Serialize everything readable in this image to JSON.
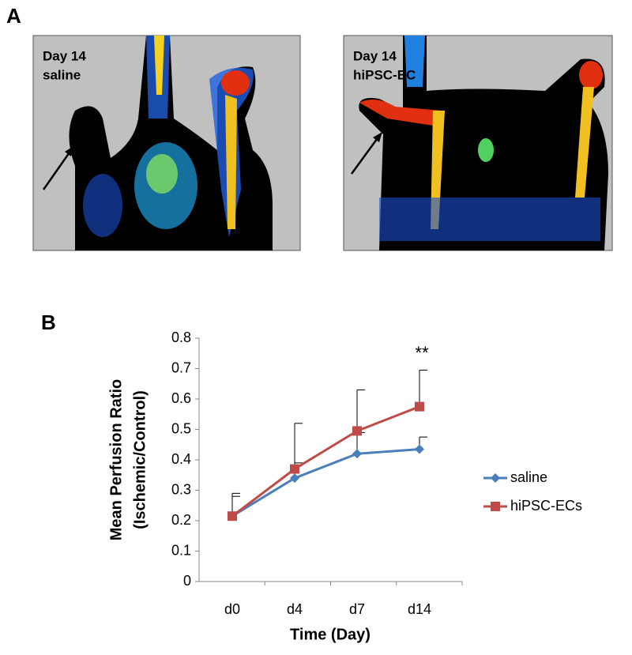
{
  "panel_a": {
    "label": "A",
    "images": [
      {
        "caption": [
          "Day 14",
          "saline"
        ]
      },
      {
        "caption": [
          "Day 14",
          "hiPSC-EC"
        ]
      }
    ]
  },
  "panel_b": {
    "label": "B"
  },
  "chart_data": {
    "type": "line",
    "xlabel": "Time (Day)",
    "ylabel": [
      "Mean Perfusion Ratio",
      "(Ischemic/Control)"
    ],
    "categories": [
      "d0",
      "d4",
      "d7",
      "d14"
    ],
    "series": [
      {
        "name": "saline",
        "color": "#4a7ebb",
        "marker": "diamond",
        "values": [
          0.215,
          0.34,
          0.42,
          0.435
        ],
        "errors": [
          0.075,
          0.05,
          0.07,
          0.04
        ]
      },
      {
        "name": "hiPSC-ECs",
        "color": "#be4b48",
        "marker": "square",
        "values": [
          0.215,
          0.37,
          0.495,
          0.575
        ],
        "errors": [
          0.065,
          0.15,
          0.135,
          0.12
        ]
      }
    ],
    "ylim": [
      0,
      0.8
    ],
    "yticks": [
      0,
      0.1,
      0.2,
      0.3,
      0.4,
      0.5,
      0.6,
      0.7,
      0.8
    ],
    "annotation": "**",
    "grid": false,
    "legend": "right"
  }
}
